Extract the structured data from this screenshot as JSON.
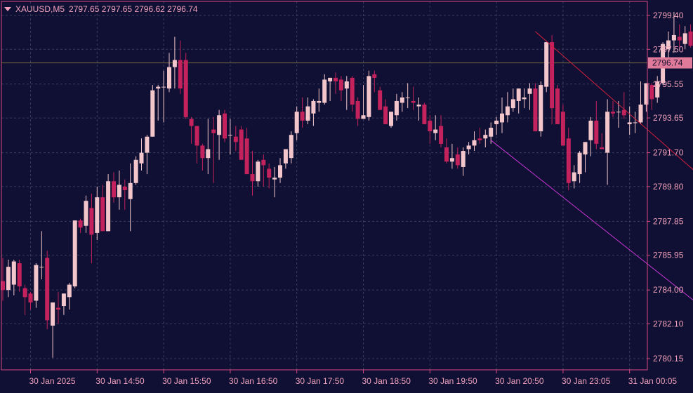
{
  "header": {
    "symbol": "XAUUSD,M5",
    "ohlc": "2797.65 2797.65 2796.62 2796.74"
  },
  "colors": {
    "background": "#0f1033",
    "frame": "#d84a82",
    "grid": "#3a3c5e",
    "bull": "#f3c6cc",
    "bear": "#c4225c",
    "price_line": "#7a6a3a",
    "price_tag_bg": "#e07a9a",
    "red_channel": "#d41f3d",
    "magenta_channel": "#c935d6",
    "axis_text": "#f2a0bb"
  },
  "chart_data": {
    "type": "candlestick",
    "symbol": "XAUUSD",
    "timeframe": "M5",
    "ylim": [
      2779.3,
      2800.2
    ],
    "y_ticks": [
      "2799.40",
      "2797.50",
      "2795.55",
      "2793.65",
      "2791.70",
      "2789.80",
      "2787.85",
      "2785.95",
      "2784.00",
      "2782.10",
      "2780.15"
    ],
    "x_ticks": [
      {
        "bar": 5,
        "label": "30 Jan 2025"
      },
      {
        "bar": 17,
        "label": "30 Jan 14:50"
      },
      {
        "bar": 29,
        "label": "30 Jan 15:50"
      },
      {
        "bar": 41,
        "label": "30 Jan 16:50"
      },
      {
        "bar": 53,
        "label": "30 Jan 17:50"
      },
      {
        "bar": 65,
        "label": "30 Jan 18:50"
      },
      {
        "bar": 77,
        "label": "30 Jan 19:50"
      },
      {
        "bar": 89,
        "label": "30 Jan 20:50"
      },
      {
        "bar": 101,
        "label": "30 Jan 23:05"
      },
      {
        "bar": 113,
        "label": "31 Jan 00:05"
      }
    ],
    "current_price": "2796.74",
    "candles": [
      [
        2784.5,
        2785.8,
        2783.4,
        2784.0
      ],
      [
        2784.0,
        2785.7,
        2783.6,
        2785.3
      ],
      [
        2784.3,
        2785.7,
        2783.7,
        2785.6
      ],
      [
        2785.5,
        2785.7,
        2783.9,
        2784.2
      ],
      [
        2784.1,
        2784.3,
        2782.6,
        2783.6
      ],
      [
        2783.8,
        2783.9,
        2782.9,
        2783.3
      ],
      [
        2783.4,
        2785.5,
        2783.0,
        2785.4
      ],
      [
        2785.3,
        2787.3,
        2784.6,
        2785.3
      ],
      [
        2785.8,
        2786.2,
        2781.8,
        2782.3
      ],
      [
        2782.0,
        2783.3,
        2780.2,
        2783.3
      ],
      [
        2783.0,
        2783.9,
        2782.1,
        2782.9
      ],
      [
        2783.1,
        2783.8,
        2782.6,
        2783.8
      ],
      [
        2783.6,
        2784.4,
        2782.9,
        2784.3
      ],
      [
        2784.2,
        2787.9,
        2784.1,
        2787.9
      ],
      [
        2787.9,
        2788.0,
        2787.2,
        2787.5
      ],
      [
        2787.6,
        2789.3,
        2787.2,
        2789.0
      ],
      [
        2788.6,
        2789.4,
        2785.5,
        2787.1
      ],
      [
        2787.2,
        2789.8,
        2786.8,
        2789.2
      ],
      [
        2789.2,
        2789.9,
        2787.3,
        2787.3
      ],
      [
        2787.3,
        2790.5,
        2787.3,
        2790.1
      ],
      [
        2790.1,
        2790.6,
        2788.9,
        2789.2
      ],
      [
        2789.2,
        2790.7,
        2788.5,
        2789.9
      ],
      [
        2789.8,
        2790.2,
        2788.5,
        2789.6
      ],
      [
        2789.1,
        2791.1,
        2787.3,
        2790.0
      ],
      [
        2790.0,
        2791.5,
        2789.9,
        2791.3
      ],
      [
        2791.1,
        2792.5,
        2790.7,
        2791.7
      ],
      [
        2791.7,
        2792.7,
        2790.5,
        2792.6
      ],
      [
        2792.6,
        2795.5,
        2792.6,
        2795.2
      ],
      [
        2795.3,
        2795.5,
        2793.5,
        2795.4
      ],
      [
        2795.4,
        2796.3,
        2793.4,
        2795.4
      ],
      [
        2795.3,
        2797.3,
        2795.1,
        2796.5
      ],
      [
        2796.5,
        2798.2,
        2795.3,
        2796.9
      ],
      [
        2796.9,
        2798.0,
        2795.0,
        2795.3
      ],
      [
        2796.9,
        2797.3,
        2793.6,
        2793.7
      ],
      [
        2793.6,
        2793.7,
        2792.2,
        2793.2
      ],
      [
        2793.2,
        2793.2,
        2791.1,
        2792.1
      ],
      [
        2792.1,
        2792.2,
        2790.7,
        2791.4
      ],
      [
        2791.4,
        2793.6,
        2790.5,
        2791.9
      ],
      [
        2793.0,
        2793.7,
        2790.0,
        2792.8
      ],
      [
        2792.7,
        2794.1,
        2791.3,
        2793.8
      ],
      [
        2793.9,
        2794.1,
        2792.3,
        2792.5
      ],
      [
        2792.7,
        2793.6,
        2791.6,
        2792.7
      ],
      [
        2792.6,
        2793.2,
        2791.8,
        2792.3
      ],
      [
        2793.0,
        2793.2,
        2791.3,
        2791.3
      ],
      [
        2792.5,
        2793.1,
        2790.5,
        2790.5
      ],
      [
        2790.5,
        2791.8,
        2789.3,
        2790.1
      ],
      [
        2790.1,
        2791.3,
        2789.8,
        2791.2
      ],
      [
        2791.3,
        2791.6,
        2789.8,
        2791.0
      ],
      [
        2790.8,
        2791.1,
        2789.7,
        2790.3
      ],
      [
        2790.2,
        2790.9,
        2789.2,
        2790.3
      ],
      [
        2790.3,
        2791.4,
        2790.0,
        2791.0
      ],
      [
        2791.1,
        2791.9,
        2790.8,
        2791.9
      ],
      [
        2791.4,
        2792.9,
        2791.1,
        2792.7
      ],
      [
        2792.8,
        2794.3,
        2792.4,
        2794.0
      ],
      [
        2794.0,
        2794.8,
        2793.1,
        2793.5
      ],
      [
        2793.5,
        2794.8,
        2793.3,
        2794.3
      ],
      [
        2793.9,
        2794.7,
        2793.2,
        2794.6
      ],
      [
        2794.5,
        2795.3,
        2794.0,
        2794.6
      ],
      [
        2794.5,
        2796.1,
        2794.4,
        2795.8
      ],
      [
        2795.7,
        2795.9,
        2794.6,
        2795.9
      ],
      [
        2795.9,
        2796.2,
        2795.0,
        2795.7
      ],
      [
        2795.8,
        2796.0,
        2794.6,
        2795.2
      ],
      [
        2795.3,
        2796.0,
        2794.1,
        2795.7
      ],
      [
        2795.9,
        2796.0,
        2794.0,
        2794.4
      ],
      [
        2794.6,
        2794.8,
        2793.2,
        2793.6
      ],
      [
        2793.6,
        2795.5,
        2793.6,
        2793.8
      ],
      [
        2793.7,
        2796.3,
        2793.5,
        2796.0
      ],
      [
        2796.1,
        2796.3,
        2795.1,
        2795.9
      ],
      [
        2795.2,
        2795.4,
        2794.1,
        2794.1
      ],
      [
        2794.3,
        2794.7,
        2793.3,
        2793.3
      ],
      [
        2793.2,
        2794.0,
        2793.1,
        2794.0
      ],
      [
        2793.8,
        2795.0,
        2793.5,
        2794.6
      ],
      [
        2794.5,
        2795.1,
        2794.0,
        2794.8
      ],
      [
        2794.8,
        2795.6,
        2794.2,
        2794.8
      ],
      [
        2794.6,
        2795.4,
        2794.1,
        2794.5
      ],
      [
        2794.3,
        2794.8,
        2793.5,
        2794.4
      ],
      [
        2794.4,
        2794.5,
        2793.3,
        2793.3
      ],
      [
        2793.5,
        2793.8,
        2792.2,
        2792.9
      ],
      [
        2792.8,
        2793.8,
        2792.4,
        2793.0
      ],
      [
        2793.2,
        2793.8,
        2792.0,
        2792.2
      ],
      [
        2792.0,
        2792.5,
        2791.1,
        2791.2
      ],
      [
        2791.2,
        2792.2,
        2790.8,
        2791.4
      ],
      [
        2791.6,
        2792.0,
        2790.8,
        2791.0
      ],
      [
        2790.9,
        2792.0,
        2790.4,
        2791.8
      ],
      [
        2791.9,
        2792.3,
        2791.6,
        2792.1
      ],
      [
        2792.1,
        2792.9,
        2791.8,
        2792.4
      ],
      [
        2792.5,
        2793.1,
        2792.2,
        2792.4
      ],
      [
        2792.5,
        2793.0,
        2792.0,
        2792.7
      ],
      [
        2792.6,
        2793.4,
        2792.2,
        2793.1
      ],
      [
        2793.3,
        2793.7,
        2792.7,
        2793.5
      ],
      [
        2793.4,
        2794.8,
        2792.8,
        2793.9
      ],
      [
        2793.8,
        2795.1,
        2793.4,
        2794.3
      ],
      [
        2794.2,
        2795.3,
        2794.0,
        2794.7
      ],
      [
        2794.6,
        2795.2,
        2793.9,
        2795.3
      ],
      [
        2794.7,
        2795.3,
        2794.2,
        2794.8
      ],
      [
        2795.0,
        2795.6,
        2794.1,
        2795.3
      ],
      [
        2795.3,
        2795.6,
        2792.9,
        2792.9
      ],
      [
        2792.9,
        2795.7,
        2792.6,
        2795.5
      ],
      [
        2795.4,
        2797.9,
        2795.1,
        2797.9
      ],
      [
        2797.9,
        2798.3,
        2793.3,
        2794.2
      ],
      [
        2795.3,
        2795.5,
        2793.3,
        2793.3
      ],
      [
        2794.0,
        2794.4,
        2792.1,
        2792.1
      ],
      [
        2792.5,
        2793.1,
        2789.6,
        2790.0
      ],
      [
        2790.1,
        2791.0,
        2789.7,
        2790.6
      ],
      [
        2790.5,
        2791.8,
        2790.0,
        2791.7
      ],
      [
        2791.6,
        2792.3,
        2790.6,
        2792.3
      ],
      [
        2792.4,
        2793.7,
        2791.5,
        2793.5
      ],
      [
        2793.5,
        2794.6,
        2791.9,
        2792.2
      ],
      [
        2792.0,
        2792.8,
        2791.9,
        2791.9
      ],
      [
        2791.7,
        2794.7,
        2789.9,
        2794.0
      ],
      [
        2794.0,
        2794.6,
        2793.7,
        2793.9
      ],
      [
        2794.0,
        2794.6,
        2793.1,
        2794.0
      ],
      [
        2794.1,
        2795.1,
        2793.6,
        2793.8
      ],
      [
        2793.3,
        2794.3,
        2792.7,
        2793.4
      ],
      [
        2793.4,
        2794.0,
        2792.8,
        2793.4
      ],
      [
        2793.4,
        2795.7,
        2793.3,
        2794.4
      ],
      [
        2794.4,
        2795.6,
        2794.0,
        2795.6
      ],
      [
        2795.5,
        2795.6,
        2794.1,
        2794.7
      ],
      [
        2794.8,
        2796.0,
        2794.5,
        2795.7
      ],
      [
        2795.6,
        2797.9,
        2795.5,
        2797.8
      ],
      [
        2797.5,
        2798.5,
        2797.0,
        2798.0
      ],
      [
        2798.0,
        2799.6,
        2797.3,
        2798.3
      ],
      [
        2798.2,
        2798.9,
        2797.6,
        2798.0
      ],
      [
        2797.8,
        2798.8,
        2797.5,
        2798.4
      ],
      [
        2798.5,
        2798.9,
        2797.6,
        2797.7
      ],
      [
        2797.6,
        2797.7,
        2796.6,
        2796.7
      ]
    ],
    "trendlines": [
      {
        "name": "upper-channel",
        "color": "red",
        "from": {
          "bar": 96,
          "price": 2798.5
        },
        "to": {
          "bar": 125,
          "price": 2790.6
        }
      },
      {
        "name": "lower-channel",
        "color": "magenta",
        "from": {
          "bar": 88,
          "price": 2792.4
        },
        "to": {
          "bar": 125,
          "price": 2783.3
        }
      }
    ]
  }
}
